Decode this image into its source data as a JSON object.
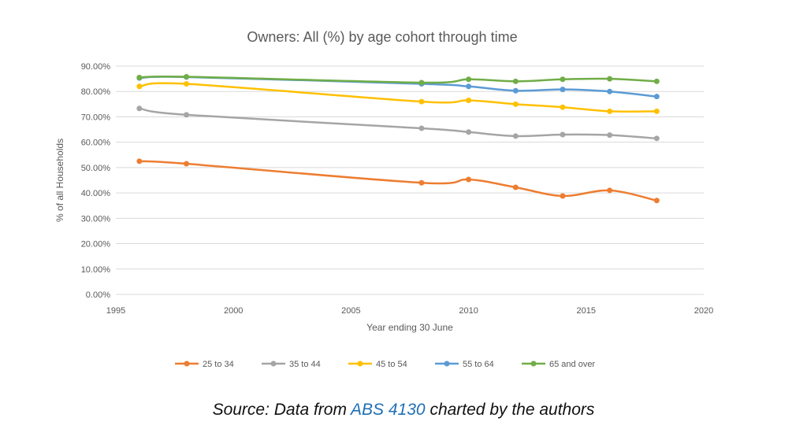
{
  "chart_data": {
    "type": "line",
    "title": "Owners: All (%) by age cohort through time",
    "xlabel": "Year ending 30 June",
    "ylabel": "% of all Households",
    "xlim": [
      1995,
      2020
    ],
    "ylim": [
      0,
      90
    ],
    "xticks": [
      1995,
      2000,
      2005,
      2010,
      2015,
      2020
    ],
    "yticks": [
      "0.00%",
      "10.00%",
      "20.00%",
      "30.00%",
      "40.00%",
      "50.00%",
      "60.00%",
      "70.00%",
      "80.00%",
      "90.00%"
    ],
    "grid": true,
    "legend_position": "bottom",
    "x": [
      1996,
      1998,
      2008,
      2010,
      2012,
      2014,
      2016,
      2018
    ],
    "series": [
      {
        "name": "25 to 34",
        "color": "#ed7d31",
        "values": [
          52.5,
          51.5,
          44.0,
          45.3,
          42.2,
          38.8,
          41.0,
          37.0
        ]
      },
      {
        "name": "35 to 44",
        "color": "#a5a5a5",
        "values": [
          73.3,
          70.8,
          65.5,
          64.0,
          62.4,
          63.0,
          62.8,
          61.5
        ]
      },
      {
        "name": "45 to 54",
        "color": "#ffc000",
        "values": [
          82.0,
          83.0,
          76.0,
          76.5,
          75.0,
          73.8,
          72.2,
          72.2
        ]
      },
      {
        "name": "55 to 64",
        "color": "#5b9bd5",
        "values": [
          85.3,
          85.7,
          83.0,
          82.0,
          80.3,
          80.8,
          80.0,
          78.0
        ]
      },
      {
        "name": "65 and over",
        "color": "#70ad47",
        "values": [
          85.5,
          85.8,
          83.5,
          84.8,
          84.0,
          84.8,
          85.0,
          84.0
        ]
      }
    ]
  },
  "caption": {
    "prefix": "Source: Data from ",
    "link": "ABS 4130",
    "suffix": " charted by the authors"
  }
}
